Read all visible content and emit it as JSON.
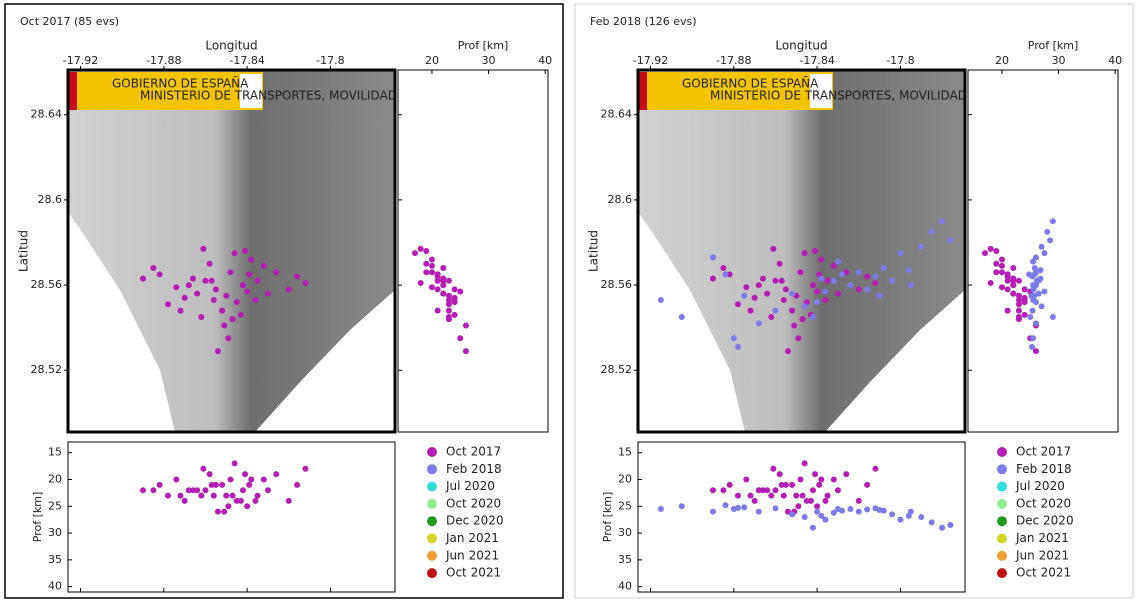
{
  "logos": [
    "GOBIERNO DE ESPAÑA",
    "MINISTERIO DE TRANSPORTES, MOVILIDAD Y AGENDA URBANA"
  ],
  "chart_data": [
    {
      "type": "scatter",
      "title": "Oct 2017 (85 evs)",
      "xlabel": "Longitud",
      "ylabel": "Latitud",
      "depth_label": "Prof [km]",
      "xlim": [
        -17.926,
        -17.769
      ],
      "xticks": [
        -17.92,
        -17.88,
        -17.84,
        -17.8
      ],
      "ylim": [
        28.491,
        28.661
      ],
      "yticks": [
        28.52,
        28.56,
        28.6,
        28.64
      ],
      "depth_xlim": [
        14,
        40.5
      ],
      "depth_xticks": [
        20,
        30,
        40
      ],
      "depth_ylim": [
        13,
        41
      ],
      "depth_yticks": [
        15,
        20,
        25,
        30,
        35,
        40
      ],
      "depth_inverted": true,
      "series": [
        {
          "name": "Oct 2017",
          "color": "#b51db5",
          "x": [
            -17.86,
            -17.855,
            -17.85,
            -17.848,
            -17.845,
            -17.842,
            -17.84,
            -17.852,
            -17.858,
            -17.862,
            -17.866,
            -17.87,
            -17.874,
            -17.878,
            -17.882,
            -17.885,
            -17.838,
            -17.835,
            -17.83,
            -17.826,
            -17.82,
            -17.816,
            -17.812,
            -17.846,
            -17.851,
            -17.856,
            -17.861,
            -17.843,
            -17.839,
            -17.849,
            -17.854,
            -17.868,
            -17.872,
            -17.832,
            -17.836,
            -17.864,
            -17.857,
            -17.847,
            -17.841,
            -17.89
          ],
          "values": [
            28.562,
            28.558,
            28.555,
            28.566,
            28.552,
            28.56,
            28.557,
            28.548,
            28.57,
            28.545,
            28.563,
            28.554,
            28.559,
            28.551,
            28.565,
            28.568,
            28.572,
            28.562,
            28.556,
            28.566,
            28.558,
            28.564,
            28.561,
            28.575,
            28.541,
            28.553,
            28.577,
            28.546,
            28.565,
            28.535,
            28.529,
            28.56,
            28.548,
            28.569,
            28.553,
            28.556,
            28.562,
            28.544,
            28.576,
            28.563
          ],
          "depth": [
            22,
            21,
            23,
            20,
            24,
            22,
            25,
            21,
            19,
            23,
            22,
            24,
            20,
            23,
            21,
            22,
            20,
            23,
            22,
            19,
            24,
            21,
            18,
            17,
            26,
            23,
            18,
            24,
            21,
            25,
            26,
            22,
            23,
            20,
            24,
            22,
            21,
            23,
            19,
            22
          ]
        },
        {
          "name": "Feb 2018",
          "color": "#7b7bea",
          "x": [],
          "values": [],
          "depth": []
        },
        {
          "name": "Jul 2020",
          "color": "#30dede",
          "x": [],
          "values": [],
          "depth": []
        },
        {
          "name": "Oct 2020",
          "color": "#90ee90",
          "x": [],
          "values": [],
          "depth": []
        },
        {
          "name": "Dec 2020",
          "color": "#1f9a1f",
          "x": [],
          "values": [],
          "depth": []
        },
        {
          "name": "Jan 2021",
          "color": "#d4d422",
          "x": [],
          "values": [],
          "depth": []
        },
        {
          "name": "Jun 2021",
          "color": "#f0a030",
          "x": [],
          "values": [],
          "depth": []
        },
        {
          "name": "Oct 2021",
          "color": "#c01010",
          "x": [],
          "values": [],
          "depth": []
        }
      ]
    },
    {
      "type": "scatter",
      "title": "Feb 2018 (126 evs)",
      "xlabel": "Longitud",
      "ylabel": "Latitud",
      "depth_label": "Prof [km]",
      "xlim": [
        -17.926,
        -17.769
      ],
      "xticks": [
        -17.92,
        -17.88,
        -17.84,
        -17.8
      ],
      "ylim": [
        28.491,
        28.661
      ],
      "yticks": [
        28.52,
        28.56,
        28.6,
        28.64
      ],
      "depth_xlim": [
        14,
        40.5
      ],
      "depth_xticks": [
        20,
        30,
        40
      ],
      "depth_ylim": [
        13,
        41
      ],
      "depth_yticks": [
        15,
        20,
        25,
        30,
        35,
        40
      ],
      "depth_inverted": true,
      "series": [
        {
          "name": "Oct 2017",
          "color": "#b51db5",
          "x": [
            -17.86,
            -17.855,
            -17.85,
            -17.848,
            -17.845,
            -17.842,
            -17.84,
            -17.852,
            -17.858,
            -17.862,
            -17.866,
            -17.87,
            -17.874,
            -17.878,
            -17.882,
            -17.885,
            -17.838,
            -17.835,
            -17.83,
            -17.826,
            -17.82,
            -17.816,
            -17.812,
            -17.846,
            -17.851,
            -17.856,
            -17.861,
            -17.843,
            -17.839,
            -17.849,
            -17.854,
            -17.868,
            -17.872,
            -17.832,
            -17.836,
            -17.864,
            -17.857,
            -17.847,
            -17.841,
            -17.89
          ],
          "values": [
            28.562,
            28.558,
            28.555,
            28.566,
            28.552,
            28.56,
            28.557,
            28.548,
            28.57,
            28.545,
            28.563,
            28.554,
            28.559,
            28.551,
            28.565,
            28.568,
            28.572,
            28.562,
            28.556,
            28.566,
            28.558,
            28.564,
            28.561,
            28.575,
            28.541,
            28.553,
            28.577,
            28.546,
            28.565,
            28.535,
            28.529,
            28.56,
            28.548,
            28.569,
            28.553,
            28.556,
            28.562,
            28.544,
            28.576,
            28.563
          ],
          "depth": [
            22,
            21,
            23,
            20,
            24,
            22,
            25,
            21,
            19,
            23,
            22,
            24,
            20,
            23,
            21,
            22,
            20,
            23,
            22,
            19,
            24,
            21,
            18,
            17,
            26,
            23,
            18,
            24,
            21,
            25,
            26,
            22,
            23,
            20,
            24,
            22,
            21,
            23,
            19,
            22
          ]
        },
        {
          "name": "Feb 2018",
          "color": "#7b7bea",
          "x": [
            -17.915,
            -17.905,
            -17.89,
            -17.88,
            -17.875,
            -17.868,
            -17.86,
            -17.852,
            -17.846,
            -17.84,
            -17.836,
            -17.832,
            -17.828,
            -17.824,
            -17.82,
            -17.816,
            -17.812,
            -17.808,
            -17.804,
            -17.8,
            -17.796,
            -17.79,
            -17.785,
            -17.78,
            -17.776,
            -17.884,
            -17.878,
            -17.842,
            -17.83,
            -17.81,
            -17.795,
            -17.838
          ],
          "values": [
            28.553,
            28.545,
            28.573,
            28.535,
            28.555,
            28.542,
            28.548,
            28.556,
            28.55,
            28.552,
            28.557,
            28.562,
            28.565,
            28.56,
            28.566,
            28.558,
            28.564,
            28.568,
            28.562,
            28.575,
            28.567,
            28.578,
            28.585,
            28.59,
            28.581,
            28.565,
            28.531,
            28.545,
            28.571,
            28.555,
            28.56,
            28.563
          ],
          "depth": [
            25.5,
            25,
            26,
            25.5,
            25.2,
            26,
            25.4,
            26.5,
            27,
            26,
            27.5,
            26.2,
            25.8,
            25.5,
            26,
            25.6,
            25.4,
            25.8,
            26.5,
            27.5,
            26.8,
            27,
            28,
            29,
            28.5,
            24.8,
            25.3,
            29,
            25.5,
            25.7,
            26,
            26.8
          ]
        },
        {
          "name": "Jul 2020",
          "color": "#30dede",
          "x": [],
          "values": [],
          "depth": []
        },
        {
          "name": "Oct 2020",
          "color": "#90ee90",
          "x": [],
          "values": [],
          "depth": []
        },
        {
          "name": "Dec 2020",
          "color": "#1f9a1f",
          "x": [],
          "values": [],
          "depth": []
        },
        {
          "name": "Jan 2021",
          "color": "#d4d422",
          "x": [],
          "values": [],
          "depth": []
        },
        {
          "name": "Jun 2021",
          "color": "#f0a030",
          "x": [],
          "values": [],
          "depth": []
        },
        {
          "name": "Oct 2021",
          "color": "#c01010",
          "x": [],
          "values": [],
          "depth": []
        }
      ]
    }
  ]
}
